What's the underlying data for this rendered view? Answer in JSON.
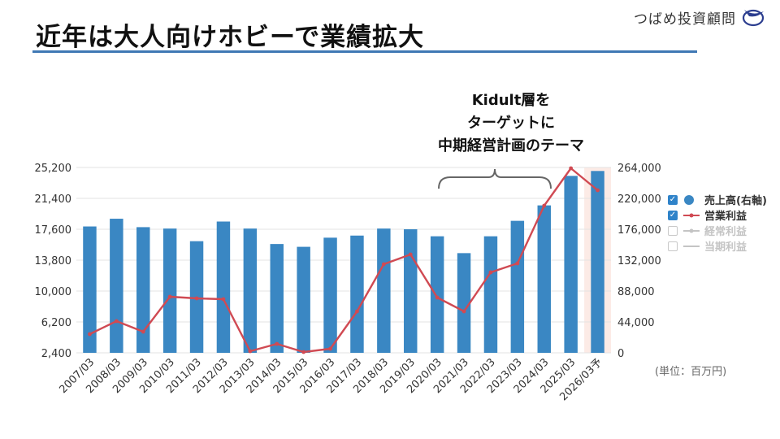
{
  "header": {
    "title": "近年は大人向けホビーで業績拡大",
    "brand": "つばめ投資顧問",
    "brand_logo": "swallow-logo-icon"
  },
  "callout": {
    "line1": "Kidult層を",
    "line2": "ターゲットに",
    "line3": "中期経営計画のテーマ"
  },
  "unit_note": "(単位：百万円)",
  "legend": {
    "items": [
      {
        "label": "売上高(右軸)",
        "checked": true,
        "icon": "circle"
      },
      {
        "label": "営業利益",
        "checked": true,
        "icon": "line-dot"
      },
      {
        "label": "経常利益",
        "checked": false,
        "icon": "line-dot"
      },
      {
        "label": "当期利益",
        "checked": false,
        "icon": "line"
      }
    ]
  },
  "colors": {
    "bar": "#3a87c3",
    "line": "#d04a53",
    "forecast_bg": "#fcebe6",
    "title_rule": "#3f78b4",
    "checkbox": "#2f83c9"
  },
  "chart_data": {
    "type": "bar",
    "categories": [
      "2007/03",
      "2008/03",
      "2009/03",
      "2010/03",
      "2011/03",
      "2012/03",
      "2013/03",
      "2014/03",
      "2015/03",
      "2016/03",
      "2017/03",
      "2018/03",
      "2019/03",
      "2020/03",
      "2021/03",
      "2022/03",
      "2023/03",
      "2024/03",
      "2025/03",
      "2026/03予"
    ],
    "forecast_index": 19,
    "left_axis": {
      "ticks": [
        "25,200",
        "21,400",
        "17,600",
        "13,800",
        "10,000",
        "6,200",
        "2,400"
      ],
      "min": 2400,
      "max": 25200
    },
    "right_axis": {
      "ticks": [
        "264,000",
        "220,000",
        "176,000",
        "132,000",
        "88,000",
        "44,000",
        "0"
      ],
      "min": 0,
      "max": 264000
    },
    "series": [
      {
        "name": "売上高(右軸)",
        "type": "bar",
        "axis": "right",
        "values": [
          180000,
          191000,
          179000,
          177000,
          159000,
          187000,
          177000,
          155000,
          151000,
          164000,
          167000,
          177000,
          176000,
          166000,
          142000,
          166000,
          188000,
          210000,
          252000,
          259000
        ]
      },
      {
        "name": "営業利益",
        "type": "line",
        "axis": "left",
        "values": [
          4700,
          6300,
          5000,
          9300,
          9100,
          9000,
          2600,
          3500,
          2500,
          2900,
          7500,
          13300,
          14500,
          9200,
          7500,
          12300,
          13400,
          20500,
          25100,
          22400
        ]
      }
    ],
    "ylim_left": [
      2400,
      25200
    ],
    "ylim_right": [
      0,
      264000
    ],
    "grid": true,
    "legend_position": "right"
  }
}
